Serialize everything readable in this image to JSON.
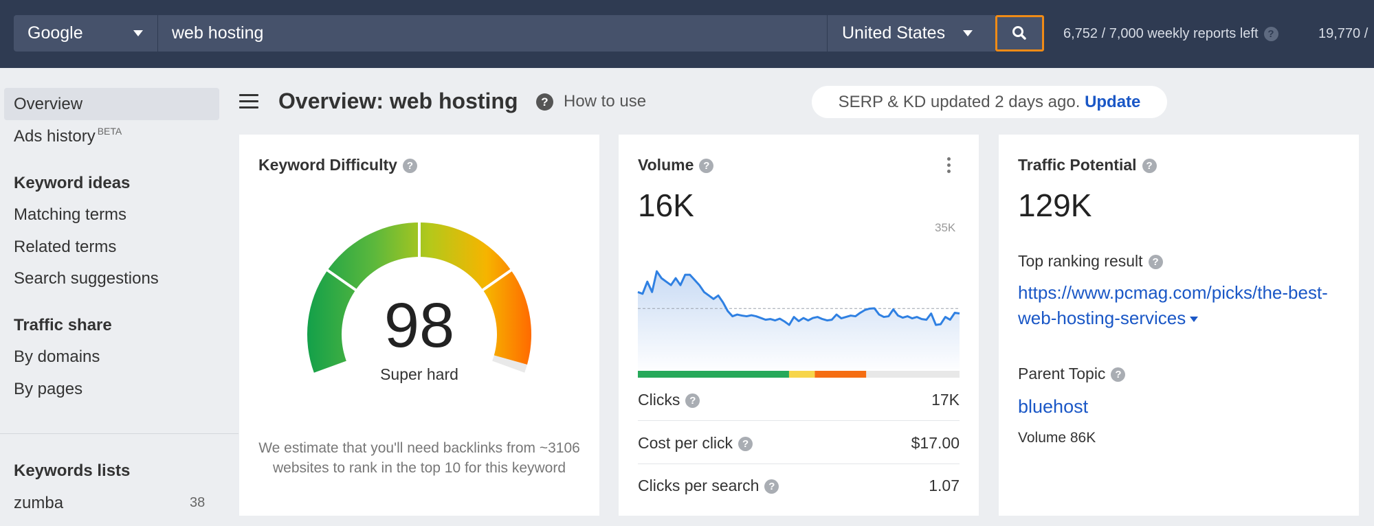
{
  "topbar": {
    "engine": "Google",
    "query": "web hosting",
    "country": "United States",
    "weekly_reports": "6,752 / 7,000 weekly reports left",
    "credits_partial": "19,770 /"
  },
  "sidebar": {
    "items": [
      {
        "label": "Overview",
        "active": true
      },
      {
        "label": "Ads history",
        "badge": "BETA"
      }
    ],
    "keyword_ideas": {
      "heading": "Keyword ideas",
      "items": [
        "Matching terms",
        "Related terms",
        "Search suggestions"
      ]
    },
    "traffic_share": {
      "heading": "Traffic share",
      "items": [
        "By domains",
        "By pages"
      ]
    },
    "keyword_lists": {
      "heading": "Keywords lists",
      "items": [
        {
          "label": "zumba",
          "count": "38"
        }
      ]
    }
  },
  "header": {
    "title": "Overview: web hosting",
    "how_to_use": "How to use",
    "update_text": "SERP & KD updated 2 days ago.",
    "update_link": "Update"
  },
  "kd_card": {
    "title": "Keyword Difficulty",
    "value": "98",
    "label": "Super hard",
    "note": "We estimate that you'll need backlinks from ~3106 websites to rank in the top 10 for this keyword",
    "level": 0.98,
    "colors": [
      "#13a04a",
      "#5cb83c",
      "#b5c81a",
      "#f6b400",
      "#ff6a00"
    ]
  },
  "volume_card": {
    "title": "Volume",
    "value": "16K",
    "ymax_label": "35K",
    "clicks_split": [
      {
        "share": 0.47,
        "color": "#27a95a"
      },
      {
        "share": 0.08,
        "color": "#f7d54a"
      },
      {
        "share": 0.16,
        "color": "#f56d12"
      },
      {
        "share": 0.29,
        "color": "#e8e8e8"
      }
    ],
    "metrics": [
      {
        "label": "Clicks",
        "value": "17K"
      },
      {
        "label": "Cost per click",
        "value": "$17.00"
      },
      {
        "label": "Clicks per search",
        "value": "1.07"
      }
    ]
  },
  "traffic_card": {
    "title": "Traffic Potential",
    "value": "129K",
    "top_ranking_label": "Top ranking result",
    "top_ranking_url": "https://www.pcmag.com/picks/the-best-web-hosting-services",
    "parent_topic_label": "Parent Topic",
    "parent_topic": "bluehost",
    "parent_volume": "Volume 86K"
  },
  "chart_data": {
    "type": "area",
    "ylim": [
      0,
      35000
    ],
    "ymax_label": "35K",
    "grid": false,
    "values": [
      18000,
      17500,
      21000,
      18000,
      24000,
      22000,
      21000,
      20000,
      22000,
      20000,
      23000,
      23000,
      21500,
      20000,
      18000,
      17000,
      16000,
      17000,
      15000,
      12500,
      11000,
      11500,
      11200,
      11000,
      11300,
      11000,
      10500,
      10000,
      10200,
      9800,
      10300,
      9500,
      8500,
      10800,
      9600,
      10500,
      9800,
      10500,
      10800,
      10200,
      9800,
      10000,
      11500,
      10400,
      10800,
      11200,
      11000,
      12000,
      12800,
      13200,
      13300,
      11500,
      10800,
      11000,
      13000,
      11200,
      10600,
      11000,
      10400,
      10800,
      10200,
      10000,
      11800,
      8500,
      8700,
      10800,
      10000,
      12000,
      11800
    ]
  }
}
